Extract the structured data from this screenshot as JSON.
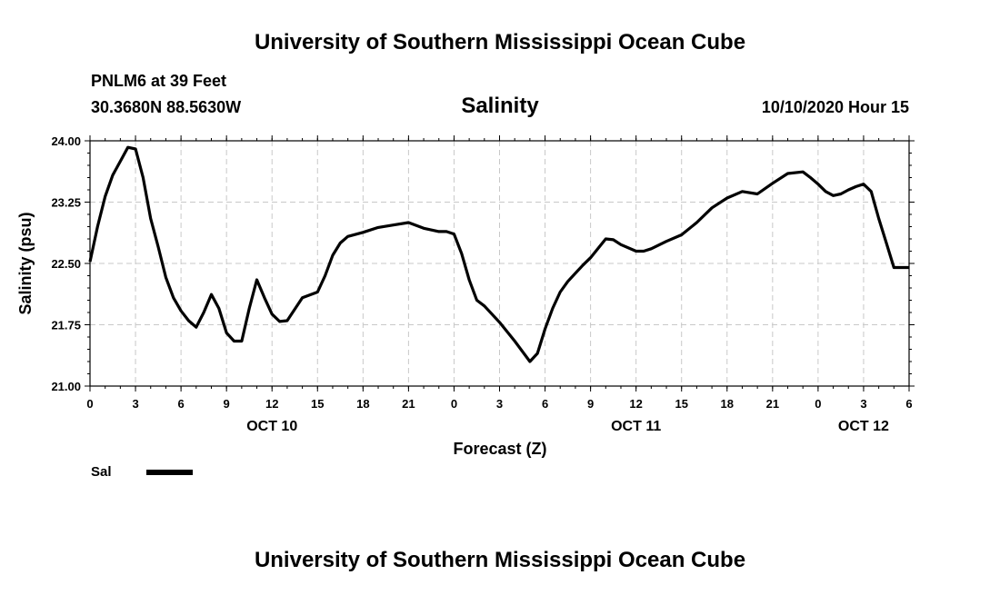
{
  "header": {
    "title": "University of Southern Mississippi Ocean Cube",
    "station": "PNLM6 at 39 Feet",
    "coords": "30.3680N 88.5630W",
    "variable": "Salinity",
    "issued": "10/10/2020 Hour 15"
  },
  "footer": {
    "title": "University of Southern Mississippi Ocean Cube"
  },
  "legend": {
    "label": "Sal"
  },
  "chart_data": {
    "type": "line",
    "title": "Salinity",
    "xlabel": "Forecast (Z)",
    "ylabel": "Salinity (psu)",
    "ylim": [
      21.0,
      24.0
    ],
    "xlim": [
      0,
      54
    ],
    "yticks": [
      "21.00",
      "21.75",
      "22.50",
      "23.25",
      "24.00"
    ],
    "xticks": [
      {
        "h": 0,
        "label": "0"
      },
      {
        "h": 3,
        "label": "3"
      },
      {
        "h": 6,
        "label": "6"
      },
      {
        "h": 9,
        "label": "9"
      },
      {
        "h": 12,
        "label": "12"
      },
      {
        "h": 15,
        "label": "15"
      },
      {
        "h": 18,
        "label": "18"
      },
      {
        "h": 21,
        "label": "21"
      },
      {
        "h": 24,
        "label": "0"
      },
      {
        "h": 27,
        "label": "3"
      },
      {
        "h": 30,
        "label": "6"
      },
      {
        "h": 33,
        "label": "9"
      },
      {
        "h": 36,
        "label": "12"
      },
      {
        "h": 39,
        "label": "15"
      },
      {
        "h": 42,
        "label": "18"
      },
      {
        "h": 45,
        "label": "21"
      },
      {
        "h": 48,
        "label": "0"
      },
      {
        "h": 51,
        "label": "3"
      },
      {
        "h": 54,
        "label": "6"
      }
    ],
    "day_labels": [
      {
        "h": 12,
        "label": "OCT 10"
      },
      {
        "h": 36,
        "label": "OCT 11"
      },
      {
        "h": 51,
        "label": "OCT 12"
      }
    ],
    "grid": true,
    "legend_position": "bottom-left",
    "series": [
      {
        "name": "Sal",
        "color": "#000000",
        "x": [
          0,
          0.5,
          1,
          1.5,
          2,
          2.5,
          3,
          3.5,
          4,
          4.5,
          5,
          5.5,
          6,
          6.5,
          7,
          7.5,
          8,
          8.5,
          9,
          9.5,
          10,
          10.5,
          11,
          11.5,
          12,
          12.5,
          13,
          14,
          15,
          15.5,
          16,
          16.5,
          17,
          18,
          19,
          20,
          21,
          22,
          23,
          23.5,
          24,
          24.5,
          25,
          25.5,
          26,
          27,
          28,
          29,
          29.5,
          30,
          30.5,
          31,
          31.5,
          32,
          32.5,
          33,
          34,
          34.5,
          35,
          36,
          36.5,
          37,
          38,
          39,
          40,
          41,
          42,
          43,
          44,
          45,
          46,
          47,
          47.5,
          48,
          48.5,
          49,
          49.5,
          50,
          50.5,
          51,
          51.5,
          52,
          52.5,
          53,
          53.5,
          54
        ],
        "values": [
          22.52,
          22.95,
          23.32,
          23.58,
          23.75,
          23.92,
          23.9,
          23.55,
          23.05,
          22.7,
          22.33,
          22.08,
          21.92,
          21.8,
          21.72,
          21.9,
          22.12,
          21.95,
          21.65,
          21.55,
          21.55,
          21.95,
          22.3,
          22.08,
          21.88,
          21.79,
          21.8,
          22.08,
          22.15,
          22.35,
          22.6,
          22.75,
          22.83,
          22.88,
          22.94,
          22.97,
          23.0,
          22.93,
          22.89,
          22.89,
          22.86,
          22.62,
          22.3,
          22.05,
          21.98,
          21.78,
          21.55,
          21.3,
          21.4,
          21.7,
          21.95,
          22.15,
          22.28,
          22.38,
          22.48,
          22.57,
          22.8,
          22.79,
          22.73,
          22.65,
          22.65,
          22.68,
          22.77,
          22.85,
          23.0,
          23.18,
          23.3,
          23.38,
          23.35,
          23.48,
          23.6,
          23.62,
          23.55,
          23.47,
          23.38,
          23.33,
          23.35,
          23.4,
          23.44,
          23.47,
          23.38,
          23.05,
          22.75,
          22.45,
          22.45,
          22.45
        ]
      }
    ]
  }
}
